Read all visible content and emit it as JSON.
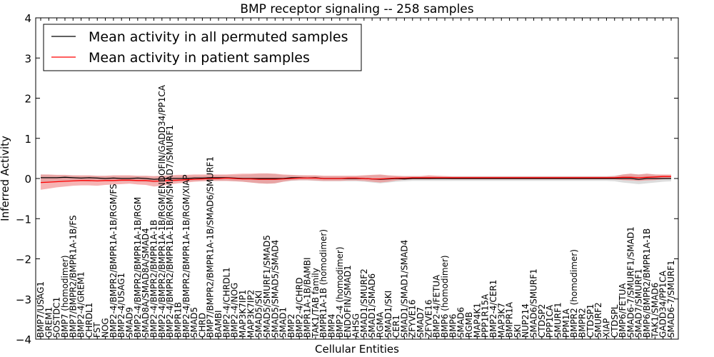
{
  "chart_data": {
    "type": "line",
    "title": "BMP receptor signaling -- 258 samples",
    "xlabel": "Cellular Entities",
    "ylabel": "Inferred Activity",
    "ylim": [
      -4,
      4
    ],
    "yticks": [
      -4,
      -3,
      -2,
      -1,
      0,
      1,
      2,
      3,
      4
    ],
    "ytick_labels": [
      "−4",
      "−3",
      "−2",
      "−1",
      "0",
      "1",
      "2",
      "3",
      "4"
    ],
    "legend": {
      "position": "top-left",
      "entries": [
        {
          "label": "Mean activity in all permuted samples",
          "color": "#000000"
        },
        {
          "label": "Mean activity in patient samples",
          "color": "#ff0000"
        }
      ]
    },
    "categories": [
      "BMP7/USAG1",
      "GREM1",
      "SOSTDC1",
      "BMP7 (homodimer)",
      "BMP7/BMPR2/BMPR1A-1B/FS",
      "BMP2-4/GREM1",
      "CHRDL1",
      "FST",
      "NOG",
      "BMP2-4/BMPR2/BMPR1A-1B/RGM/FS",
      "BMP2-4/USAG1",
      "SMAD9",
      "BMP2-4/BMPR2/BMPR1A-1B/RGM",
      "SMAD8A/SMAD8A/SMAD4",
      "BMP2-4/BMPR2/BMPR1A-1B",
      "BMP2-4/BMPR2/BMPR1A-1B/RGM/ENDOFIN/GADD34/PP1CA",
      "BMP2-4/BMPR2/BMPR1A-1B/RGM/SMAD7/SMURF1",
      "BMPR1B",
      "BMP2-4/BMPR2/BMPR1A-1B/RGM/XIAP",
      "SMAD5",
      "CHRD",
      "BMP7/BMPR2/BMPR1A-1B/SMAD6/SMURF1",
      "BAMBI",
      "BMP2-4/CHRDL1",
      "BMP2-4/NOG",
      "MAP3K7IP1",
      "MAP3K7IP2",
      "SMAD5/SKI",
      "SMAD5/SMURF1/SMAD5",
      "SMAD5/SMAD5/SMAD4",
      "SMAD1",
      "BMP2",
      "BMP2-4/CHRD",
      "BMPR1A-1B/BAMBI",
      "TAK1/TAB family",
      "BMPR1A-1B (homodimer)",
      "BMP4",
      "BMP2-4 (homodimer)",
      "ENDOFIN/SMAD1",
      "AHSG",
      "SMAD1/SMURF2",
      "SMAD1/SMAD6",
      "RGMA",
      "SMAD1/SKI",
      "CER1",
      "SMAD1/SMAD1/SMAD4",
      "ZFYVE16",
      "SMAD7",
      "ZFYVE16",
      "BMP2-4/FETUA",
      "BMP6 (homodimer)",
      "BMP6",
      "SMAD6",
      "RGMB",
      "MAP4K1",
      "PPP1R15A",
      "BMP2-4/CER1",
      "MAP3K7",
      "BMPR1A",
      "SKI",
      "NUP214",
      "SMAD6/SMURF1",
      "CTDSP2",
      "PPP1CA",
      "SMURF1",
      "PPM1A",
      "BMPR2 (homodimer)",
      "BMPR2",
      "CTDSP1",
      "SMURF2",
      "XIAP",
      "CTDSPL",
      "BMP6/FETUA",
      "SMAD6-7/SMURF1/SMAD1",
      "SMAD7/SMURF1",
      "BMP6/BMPR2/BMPR1A-1B",
      "TAK1/SMAD6",
      "GADD34/PP1CA",
      "SMAD6-7/SMURF1"
    ],
    "series": [
      {
        "name": "Mean activity in all permuted samples",
        "color": "#000000",
        "values": [
          0.02,
          0.02,
          0.02,
          0.03,
          0.02,
          0.01,
          0.02,
          0.01,
          0.0,
          0.01,
          0.0,
          0.0,
          0.01,
          0.0,
          -0.02,
          -0.01,
          0.0,
          0.0,
          0.0,
          0.01,
          0.01,
          0.02,
          0.02,
          0.02,
          0.01,
          0.0,
          0.0,
          0.0,
          0.0,
          0.0,
          0.0,
          0.02,
          0.02,
          0.01,
          0.02,
          0.0,
          0.0,
          0.0,
          0.0,
          0.0,
          0.0,
          -0.01,
          -0.02,
          -0.01,
          0.0,
          -0.01,
          0.0,
          0.0,
          0.0,
          0.0,
          0.0,
          0.0,
          0.0,
          0.0,
          0.0,
          0.0,
          0.0,
          0.0,
          0.0,
          0.0,
          0.0,
          0.0,
          0.0,
          0.0,
          0.0,
          0.0,
          0.0,
          0.0,
          0.0,
          0.0,
          0.0,
          0.0,
          0.0,
          0.0,
          -0.02,
          0.0,
          0.0,
          0.0,
          0.0
        ]
      },
      {
        "name": "Mean activity in patient samples",
        "color": "#ff0000",
        "values": [
          -0.1,
          -0.09,
          -0.08,
          -0.07,
          -0.06,
          -0.05,
          -0.05,
          -0.06,
          -0.05,
          -0.05,
          -0.04,
          -0.04,
          -0.05,
          -0.05,
          -0.07,
          -0.06,
          -0.05,
          -0.04,
          -0.03,
          -0.02,
          -0.01,
          0.0,
          0.0,
          0.01,
          0.0,
          -0.01,
          -0.01,
          -0.02,
          -0.02,
          -0.02,
          -0.01,
          0.0,
          0.01,
          0.01,
          0.01,
          0.0,
          0.0,
          0.0,
          0.01,
          0.01,
          0.0,
          -0.01,
          -0.01,
          0.0,
          0.01,
          0.01,
          0.02,
          0.02,
          0.02,
          0.02,
          0.02,
          0.02,
          0.02,
          0.02,
          0.02,
          0.02,
          0.02,
          0.02,
          0.02,
          0.02,
          0.02,
          0.02,
          0.02,
          0.02,
          0.02,
          0.02,
          0.02,
          0.02,
          0.02,
          0.02,
          0.02,
          0.02,
          0.03,
          0.03,
          0.02,
          0.03,
          0.04,
          0.05,
          0.05
        ]
      },
      {
        "name": "Patient samples band",
        "color": "#f08080",
        "lower": [
          -0.28,
          -0.25,
          -0.22,
          -0.2,
          -0.18,
          -0.17,
          -0.17,
          -0.18,
          -0.16,
          -0.15,
          -0.14,
          -0.13,
          -0.15,
          -0.16,
          -0.2,
          -0.18,
          -0.15,
          -0.12,
          -0.1,
          -0.08,
          -0.07,
          -0.06,
          -0.06,
          -0.06,
          -0.07,
          -0.08,
          -0.1,
          -0.12,
          -0.13,
          -0.12,
          -0.08,
          -0.05,
          -0.04,
          -0.04,
          -0.05,
          -0.06,
          -0.06,
          -0.06,
          -0.05,
          -0.05,
          -0.06,
          -0.08,
          -0.1,
          -0.08,
          -0.05,
          -0.03,
          -0.02,
          -0.02,
          -0.02,
          -0.01,
          -0.01,
          -0.02,
          -0.02,
          -0.02,
          -0.02,
          -0.02,
          -0.02,
          -0.02,
          -0.02,
          -0.02,
          -0.02,
          -0.02,
          -0.02,
          -0.02,
          -0.02,
          -0.02,
          -0.02,
          -0.02,
          -0.02,
          -0.02,
          -0.02,
          -0.02,
          -0.04,
          -0.05,
          -0.06,
          -0.05,
          -0.04,
          -0.02,
          -0.01
        ],
        "upper": [
          0.1,
          0.1,
          0.09,
          0.09,
          0.08,
          0.08,
          0.08,
          0.07,
          0.07,
          0.08,
          0.08,
          0.08,
          0.07,
          0.07,
          0.06,
          0.07,
          0.08,
          0.09,
          0.09,
          0.1,
          0.1,
          0.1,
          0.1,
          0.1,
          0.11,
          0.12,
          0.12,
          0.13,
          0.13,
          0.12,
          0.1,
          0.09,
          0.08,
          0.08,
          0.08,
          0.07,
          0.07,
          0.07,
          0.07,
          0.07,
          0.08,
          0.09,
          0.1,
          0.08,
          0.07,
          0.06,
          0.06,
          0.06,
          0.08,
          0.07,
          0.06,
          0.05,
          0.05,
          0.05,
          0.05,
          0.05,
          0.05,
          0.05,
          0.05,
          0.05,
          0.05,
          0.05,
          0.05,
          0.05,
          0.05,
          0.05,
          0.05,
          0.05,
          0.05,
          0.05,
          0.05,
          0.06,
          0.1,
          0.12,
          0.1,
          0.12,
          0.1,
          0.1,
          0.1
        ]
      },
      {
        "name": "Permuted samples band",
        "color": "#c0c0c0",
        "lower": [
          -0.12,
          -0.1,
          -0.08,
          -0.07,
          -0.07,
          -0.07,
          -0.08,
          -0.07,
          -0.07,
          -0.08,
          -0.08,
          -0.08,
          -0.08,
          -0.09,
          -0.1,
          -0.09,
          -0.08,
          -0.08,
          -0.07,
          -0.06,
          -0.06,
          -0.06,
          -0.06,
          -0.06,
          -0.07,
          -0.08,
          -0.1,
          -0.12,
          -0.13,
          -0.12,
          -0.08,
          -0.06,
          -0.05,
          -0.05,
          -0.06,
          -0.07,
          -0.07,
          -0.07,
          -0.07,
          -0.07,
          -0.08,
          -0.1,
          -0.12,
          -0.1,
          -0.08,
          -0.07,
          -0.06,
          -0.06,
          -0.06,
          -0.06,
          -0.06,
          -0.06,
          -0.06,
          -0.06,
          -0.06,
          -0.06,
          -0.06,
          -0.06,
          -0.06,
          -0.06,
          -0.06,
          -0.06,
          -0.06,
          -0.06,
          -0.06,
          -0.06,
          -0.06,
          -0.06,
          -0.06,
          -0.06,
          -0.06,
          -0.07,
          -0.1,
          -0.12,
          -0.14,
          -0.12,
          -0.1,
          -0.08,
          -0.07
        ],
        "upper": [
          0.1,
          0.09,
          0.08,
          0.08,
          0.07,
          0.06,
          0.06,
          0.06,
          0.06,
          0.06,
          0.06,
          0.06,
          0.06,
          0.06,
          0.05,
          0.06,
          0.06,
          0.06,
          0.07,
          0.07,
          0.07,
          0.08,
          0.08,
          0.08,
          0.08,
          0.09,
          0.1,
          0.11,
          0.12,
          0.11,
          0.08,
          0.08,
          0.08,
          0.07,
          0.07,
          0.06,
          0.06,
          0.06,
          0.06,
          0.06,
          0.07,
          0.08,
          0.09,
          0.07,
          0.06,
          0.06,
          0.06,
          0.06,
          0.06,
          0.06,
          0.06,
          0.06,
          0.06,
          0.06,
          0.06,
          0.06,
          0.06,
          0.06,
          0.06,
          0.06,
          0.06,
          0.06,
          0.06,
          0.06,
          0.06,
          0.06,
          0.06,
          0.06,
          0.06,
          0.06,
          0.06,
          0.07,
          0.1,
          0.12,
          0.1,
          0.12,
          0.1,
          0.08,
          0.07
        ]
      }
    ]
  }
}
